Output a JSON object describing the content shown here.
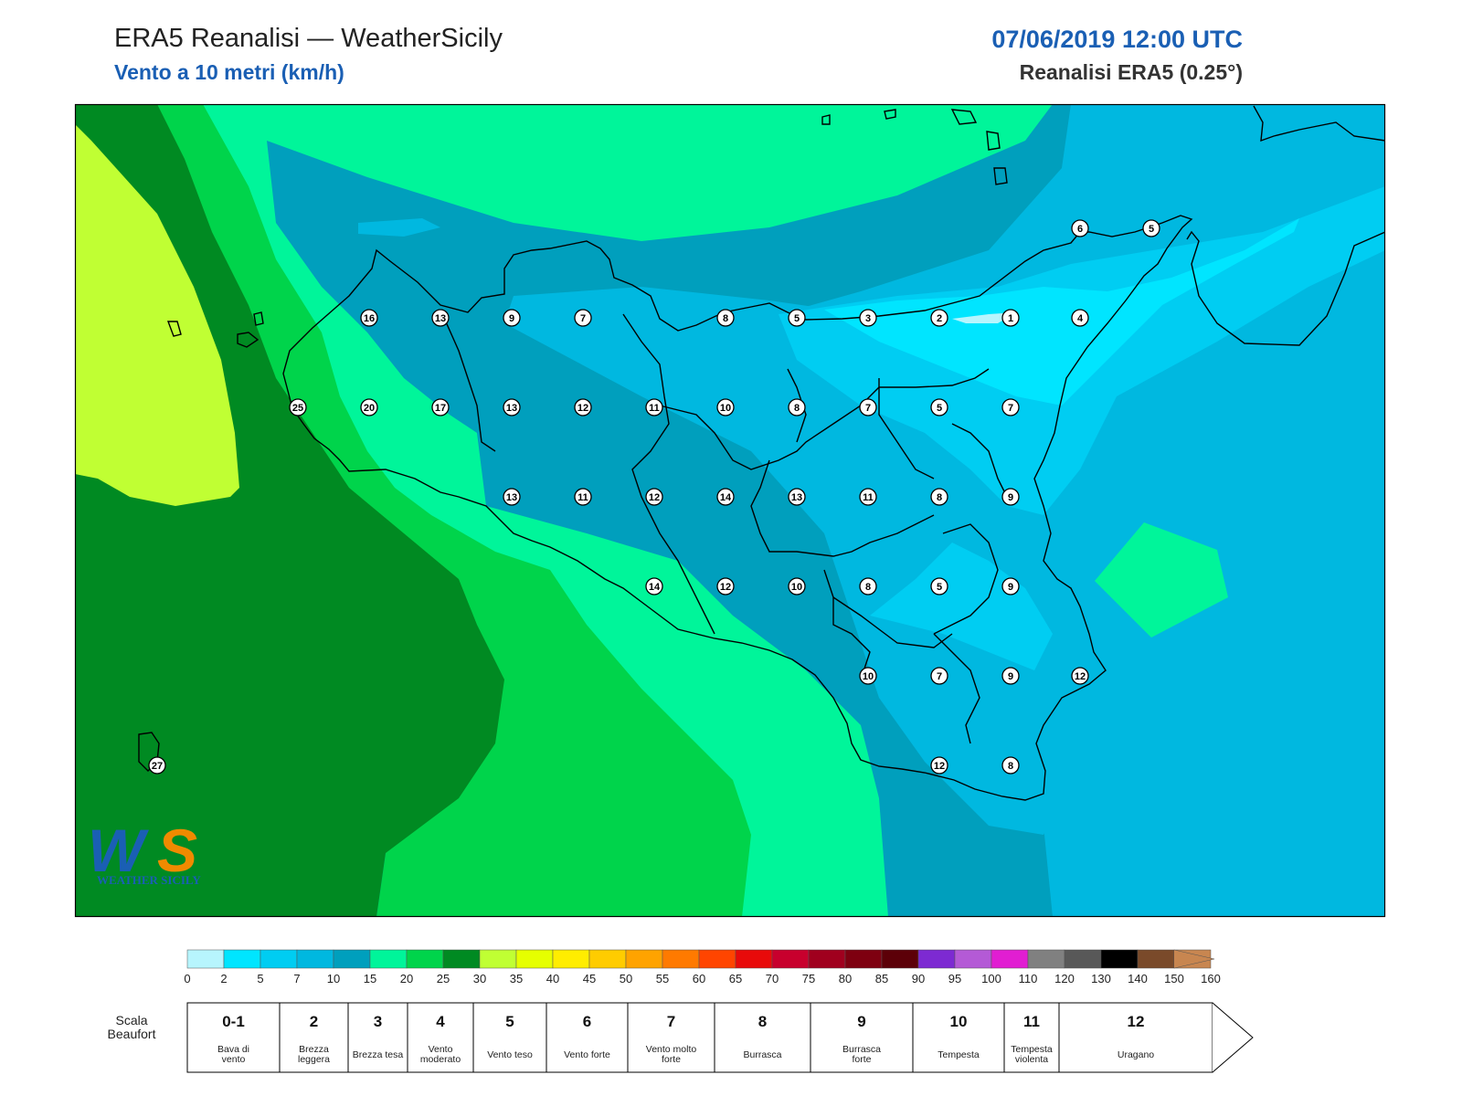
{
  "header": {
    "title": "ERA5 Reanalisi — WeatherSicily",
    "subtitle": "Vento a 10 metri (km/h)",
    "datetime": "07/06/2019 12:00 UTC",
    "source": "Reanalisi ERA5 (0.25°)"
  },
  "logo": {
    "text": "WEATHER SICILY"
  },
  "stations": [
    {
      "v": "6"
    },
    {
      "v": "5"
    },
    {
      "v": "16"
    },
    {
      "v": "13"
    },
    {
      "v": "9"
    },
    {
      "v": "7"
    },
    {
      "v": "8"
    },
    {
      "v": "5"
    },
    {
      "v": "3"
    },
    {
      "v": "2"
    },
    {
      "v": "1"
    },
    {
      "v": "4"
    },
    {
      "v": "25"
    },
    {
      "v": "20"
    },
    {
      "v": "17"
    },
    {
      "v": "13"
    },
    {
      "v": "12"
    },
    {
      "v": "11"
    },
    {
      "v": "10"
    },
    {
      "v": "8"
    },
    {
      "v": "7"
    },
    {
      "v": "5"
    },
    {
      "v": "7"
    },
    {
      "v": "13"
    },
    {
      "v": "11"
    },
    {
      "v": "12"
    },
    {
      "v": "14"
    },
    {
      "v": "13"
    },
    {
      "v": "11"
    },
    {
      "v": "8"
    },
    {
      "v": "9"
    },
    {
      "v": "14"
    },
    {
      "v": "12"
    },
    {
      "v": "10"
    },
    {
      "v": "8"
    },
    {
      "v": "5"
    },
    {
      "v": "9"
    },
    {
      "v": "10"
    },
    {
      "v": "7"
    },
    {
      "v": "9"
    },
    {
      "v": "12"
    },
    {
      "v": "12"
    },
    {
      "v": "8"
    },
    {
      "v": "27"
    }
  ],
  "colorbar": {
    "ticks": [
      "0",
      "2",
      "5",
      "7",
      "10",
      "15",
      "20",
      "25",
      "30",
      "35",
      "40",
      "45",
      "50",
      "55",
      "60",
      "65",
      "70",
      "75",
      "80",
      "85",
      "90",
      "95",
      "100",
      "110",
      "120",
      "130",
      "140",
      "150",
      "160"
    ],
    "colors": [
      "#b7f5fd",
      "#00e5ff",
      "#00cdf2",
      "#00b8e0",
      "#009fbd",
      "#00f59a",
      "#00d44b",
      "#008a22",
      "#c0ff33",
      "#e6ff00",
      "#ffed00",
      "#ffcc00",
      "#ffa300",
      "#ff7a00",
      "#ff4500",
      "#e80a0a",
      "#c8002d",
      "#a0001e",
      "#7e0010",
      "#5c0008",
      "#7d2ad2",
      "#b45ad6",
      "#e11ed2",
      "#808080",
      "#585858",
      "#000000",
      "#7a4a2a",
      "#c88650"
    ]
  },
  "beaufort": {
    "title": "Scala Beaufort",
    "cells": [
      {
        "num": "0-1",
        "label": "Bava di vento"
      },
      {
        "num": "2",
        "label": "Brezza leggera"
      },
      {
        "num": "3",
        "label": "Brezza tesa"
      },
      {
        "num": "4",
        "label": "Vento moderato"
      },
      {
        "num": "5",
        "label": "Vento teso"
      },
      {
        "num": "6",
        "label": "Vento forte"
      },
      {
        "num": "7",
        "label": "Vento molto forte"
      },
      {
        "num": "8",
        "label": "Burrasca"
      },
      {
        "num": "9",
        "label": "Burrasca forte"
      },
      {
        "num": "10",
        "label": "Tempesta"
      },
      {
        "num": "11",
        "label": "Tempesta violenta"
      },
      {
        "num": "12",
        "label": "Uragano"
      }
    ]
  }
}
